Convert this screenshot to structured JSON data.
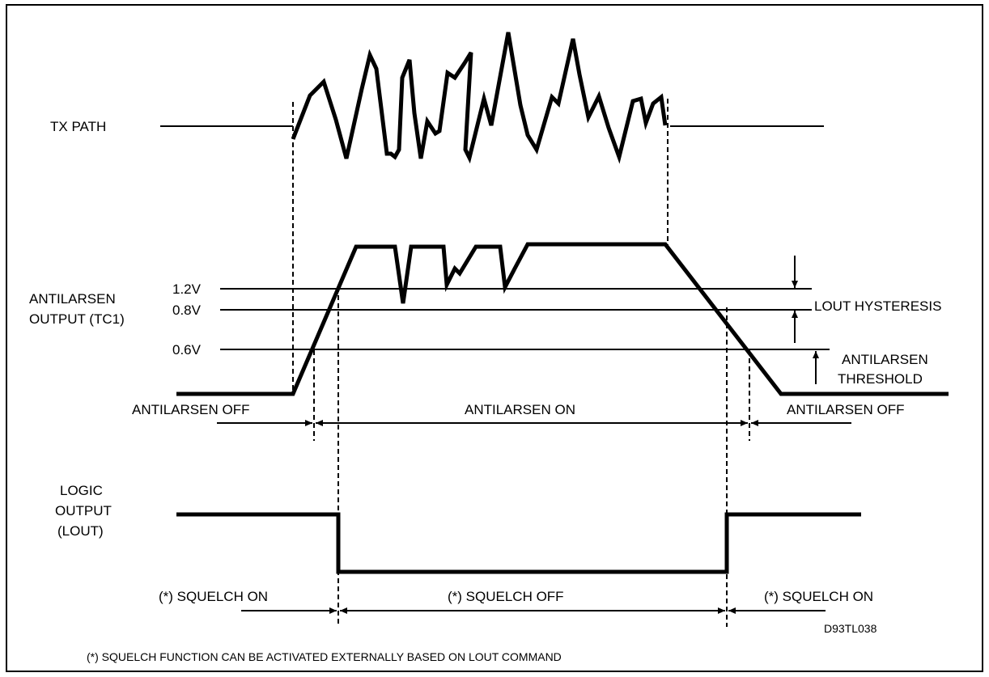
{
  "signals": {
    "tx_path": "TX PATH",
    "antilarsen_output_line1": "ANTILARSEN",
    "antilarsen_output_line2": "OUTPUT (TC1)",
    "logic_output_line1": "LOGIC",
    "logic_output_line2": "OUTPUT",
    "logic_output_line3": "(LOUT)"
  },
  "levels": {
    "v12": "1.2V",
    "v08": "0.8V",
    "v06": "0.6V"
  },
  "annotations": {
    "lout_hysteresis": "LOUT HYSTERESIS",
    "antilarsen_threshold_line1": "ANTILARSEN",
    "antilarsen_threshold_line2": "THRESHOLD"
  },
  "states": {
    "antilarsen_off_left": "ANTILARSEN OFF",
    "antilarsen_on": "ANTILARSEN ON",
    "antilarsen_off_right": "ANTILARSEN OFF",
    "squelch_on_left": "(*) SQUELCH ON",
    "squelch_off": "(*) SQUELCH OFF",
    "squelch_on_right": "(*) SQUELCH ON"
  },
  "figure_code": "D93TL038",
  "footnote": "(*) SQUELCH FUNCTION CAN BE ACTIVATED EXTERNALLY BASED ON LOUT COMMAND"
}
